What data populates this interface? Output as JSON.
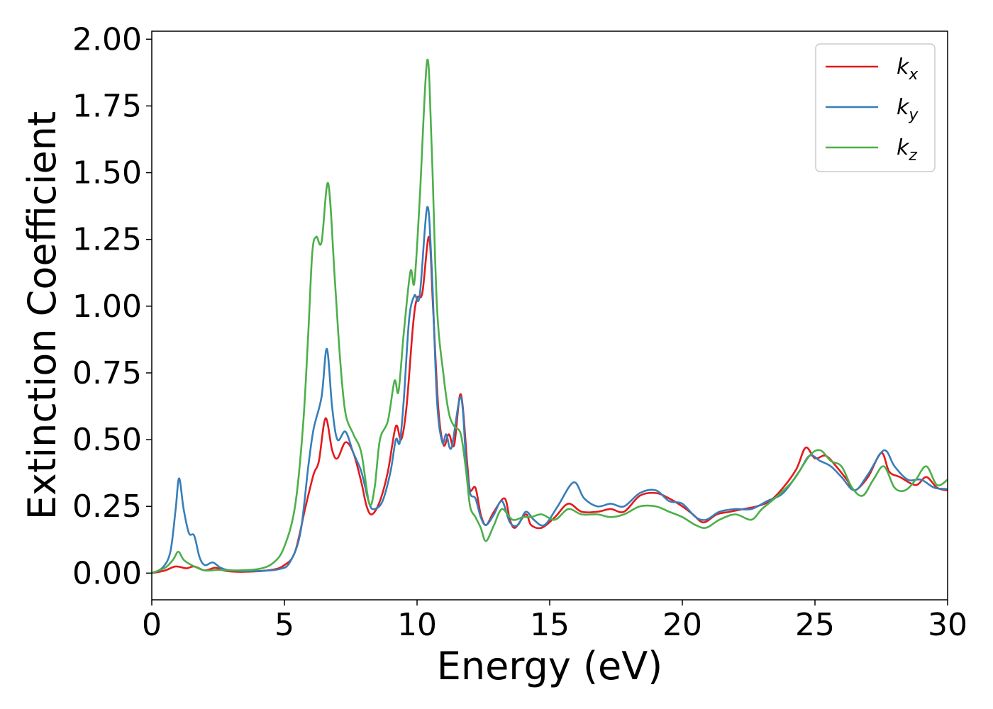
{
  "chart_data": {
    "type": "line",
    "title": "",
    "xlabel": "Energy (eV)",
    "ylabel": "Extinction Coefficient",
    "xlim": [
      0,
      30
    ],
    "ylim": [
      -0.1,
      2.03
    ],
    "xticks": [
      0,
      5,
      10,
      15,
      20,
      25,
      30
    ],
    "xtick_labels": [
      "0",
      "5",
      "10",
      "15",
      "20",
      "25",
      "30"
    ],
    "yticks": [
      0,
      0.25,
      0.5,
      0.75,
      1.0,
      1.25,
      1.5,
      1.75,
      2.0
    ],
    "ytick_labels": [
      "0.00",
      "0.25",
      "0.50",
      "0.75",
      "1.00",
      "1.25",
      "1.50",
      "1.75",
      "2.00"
    ],
    "grid": false,
    "legend_position": "top-right",
    "series": [
      {
        "name": "k",
        "subscript": "x",
        "color": "#e41a1c",
        "points": [
          [
            0,
            0
          ],
          [
            0.5,
            0.01
          ],
          [
            0.9,
            0.025
          ],
          [
            1.3,
            0.018
          ],
          [
            1.6,
            0.025
          ],
          [
            2.0,
            0.01
          ],
          [
            2.4,
            0.02
          ],
          [
            2.8,
            0.008
          ],
          [
            3.5,
            0.005
          ],
          [
            4.5,
            0.012
          ],
          [
            5.0,
            0.03
          ],
          [
            5.4,
            0.08
          ],
          [
            5.8,
            0.25
          ],
          [
            6.1,
            0.37
          ],
          [
            6.3,
            0.42
          ],
          [
            6.55,
            0.58
          ],
          [
            6.8,
            0.46
          ],
          [
            7.0,
            0.43
          ],
          [
            7.3,
            0.49
          ],
          [
            7.6,
            0.45
          ],
          [
            7.9,
            0.34
          ],
          [
            8.1,
            0.25
          ],
          [
            8.3,
            0.22
          ],
          [
            8.6,
            0.27
          ],
          [
            8.9,
            0.38
          ],
          [
            9.2,
            0.55
          ],
          [
            9.4,
            0.5
          ],
          [
            9.6,
            0.62
          ],
          [
            9.85,
            0.93
          ],
          [
            10.0,
            1.03
          ],
          [
            10.2,
            1.05
          ],
          [
            10.45,
            1.26
          ],
          [
            10.6,
            1.0
          ],
          [
            10.8,
            0.62
          ],
          [
            11.0,
            0.48
          ],
          [
            11.2,
            0.52
          ],
          [
            11.4,
            0.48
          ],
          [
            11.65,
            0.67
          ],
          [
            11.9,
            0.4
          ],
          [
            12.0,
            0.31
          ],
          [
            12.2,
            0.32
          ],
          [
            12.4,
            0.22
          ],
          [
            12.6,
            0.18
          ],
          [
            12.9,
            0.23
          ],
          [
            13.3,
            0.28
          ],
          [
            13.5,
            0.2
          ],
          [
            13.7,
            0.17
          ],
          [
            14.1,
            0.22
          ],
          [
            14.3,
            0.18
          ],
          [
            14.7,
            0.17
          ],
          [
            15.2,
            0.21
          ],
          [
            15.7,
            0.26
          ],
          [
            16.2,
            0.23
          ],
          [
            16.8,
            0.23
          ],
          [
            17.3,
            0.24
          ],
          [
            17.8,
            0.23
          ],
          [
            18.4,
            0.29
          ],
          [
            19.0,
            0.3
          ],
          [
            19.5,
            0.28
          ],
          [
            20.0,
            0.25
          ],
          [
            20.4,
            0.22
          ],
          [
            20.8,
            0.19
          ],
          [
            21.3,
            0.22
          ],
          [
            21.8,
            0.23
          ],
          [
            22.3,
            0.24
          ],
          [
            22.8,
            0.25
          ],
          [
            23.3,
            0.27
          ],
          [
            23.8,
            0.32
          ],
          [
            24.3,
            0.39
          ],
          [
            24.65,
            0.47
          ],
          [
            25.0,
            0.43
          ],
          [
            25.4,
            0.44
          ],
          [
            25.8,
            0.4
          ],
          [
            26.2,
            0.35
          ],
          [
            26.5,
            0.31
          ],
          [
            27.0,
            0.36
          ],
          [
            27.5,
            0.45
          ],
          [
            27.8,
            0.38
          ],
          [
            28.2,
            0.36
          ],
          [
            28.8,
            0.33
          ],
          [
            29.2,
            0.36
          ],
          [
            29.6,
            0.32
          ],
          [
            30.0,
            0.31
          ]
        ]
      },
      {
        "name": "k",
        "subscript": "y",
        "color": "#377eb8",
        "points": [
          [
            0,
            0
          ],
          [
            0.4,
            0.02
          ],
          [
            0.7,
            0.08
          ],
          [
            0.9,
            0.24
          ],
          [
            1.03,
            0.355
          ],
          [
            1.2,
            0.24
          ],
          [
            1.4,
            0.15
          ],
          [
            1.6,
            0.14
          ],
          [
            1.8,
            0.06
          ],
          [
            2.0,
            0.03
          ],
          [
            2.3,
            0.04
          ],
          [
            2.6,
            0.02
          ],
          [
            3.0,
            0.01
          ],
          [
            4.0,
            0.008
          ],
          [
            4.8,
            0.015
          ],
          [
            5.2,
            0.04
          ],
          [
            5.6,
            0.15
          ],
          [
            5.9,
            0.4
          ],
          [
            6.1,
            0.54
          ],
          [
            6.4,
            0.66
          ],
          [
            6.6,
            0.84
          ],
          [
            6.8,
            0.62
          ],
          [
            7.0,
            0.5
          ],
          [
            7.3,
            0.53
          ],
          [
            7.6,
            0.45
          ],
          [
            7.9,
            0.38
          ],
          [
            8.2,
            0.26
          ],
          [
            8.4,
            0.24
          ],
          [
            8.7,
            0.27
          ],
          [
            9.0,
            0.38
          ],
          [
            9.2,
            0.5
          ],
          [
            9.35,
            0.49
          ],
          [
            9.5,
            0.65
          ],
          [
            9.7,
            0.95
          ],
          [
            9.9,
            1.04
          ],
          [
            10.1,
            1.04
          ],
          [
            10.38,
            1.37
          ],
          [
            10.55,
            1.15
          ],
          [
            10.75,
            0.65
          ],
          [
            10.95,
            0.49
          ],
          [
            11.1,
            0.52
          ],
          [
            11.3,
            0.47
          ],
          [
            11.65,
            0.66
          ],
          [
            11.85,
            0.42
          ],
          [
            12.0,
            0.3
          ],
          [
            12.2,
            0.28
          ],
          [
            12.4,
            0.21
          ],
          [
            12.6,
            0.18
          ],
          [
            12.9,
            0.22
          ],
          [
            13.2,
            0.27
          ],
          [
            13.5,
            0.19
          ],
          [
            13.8,
            0.18
          ],
          [
            14.1,
            0.23
          ],
          [
            14.4,
            0.2
          ],
          [
            14.8,
            0.18
          ],
          [
            15.3,
            0.25
          ],
          [
            15.9,
            0.34
          ],
          [
            16.3,
            0.28
          ],
          [
            16.8,
            0.25
          ],
          [
            17.3,
            0.26
          ],
          [
            17.8,
            0.25
          ],
          [
            18.4,
            0.3
          ],
          [
            19.0,
            0.31
          ],
          [
            19.5,
            0.27
          ],
          [
            20.0,
            0.26
          ],
          [
            20.5,
            0.21
          ],
          [
            20.9,
            0.2
          ],
          [
            21.4,
            0.23
          ],
          [
            22.0,
            0.24
          ],
          [
            22.6,
            0.24
          ],
          [
            23.2,
            0.27
          ],
          [
            23.8,
            0.3
          ],
          [
            24.4,
            0.38
          ],
          [
            24.8,
            0.44
          ],
          [
            25.2,
            0.42
          ],
          [
            25.6,
            0.4
          ],
          [
            26.0,
            0.36
          ],
          [
            26.5,
            0.31
          ],
          [
            27.0,
            0.37
          ],
          [
            27.6,
            0.46
          ],
          [
            28.0,
            0.4
          ],
          [
            28.5,
            0.35
          ],
          [
            29.0,
            0.35
          ],
          [
            29.5,
            0.32
          ],
          [
            30.0,
            0.315
          ]
        ]
      },
      {
        "name": "k",
        "subscript": "z",
        "color": "#4daf4a",
        "points": [
          [
            0,
            0
          ],
          [
            0.5,
            0.02
          ],
          [
            0.8,
            0.05
          ],
          [
            1.0,
            0.08
          ],
          [
            1.2,
            0.05
          ],
          [
            1.5,
            0.03
          ],
          [
            2.0,
            0.01
          ],
          [
            2.5,
            0.012
          ],
          [
            3.0,
            0.01
          ],
          [
            4.0,
            0.015
          ],
          [
            4.6,
            0.04
          ],
          [
            5.0,
            0.1
          ],
          [
            5.4,
            0.25
          ],
          [
            5.7,
            0.55
          ],
          [
            5.9,
            0.9
          ],
          [
            6.05,
            1.2
          ],
          [
            6.2,
            1.26
          ],
          [
            6.4,
            1.24
          ],
          [
            6.65,
            1.46
          ],
          [
            6.9,
            1.1
          ],
          [
            7.1,
            0.8
          ],
          [
            7.3,
            0.6
          ],
          [
            7.6,
            0.52
          ],
          [
            7.9,
            0.45
          ],
          [
            8.2,
            0.26
          ],
          [
            8.4,
            0.32
          ],
          [
            8.6,
            0.5
          ],
          [
            8.9,
            0.57
          ],
          [
            9.15,
            0.72
          ],
          [
            9.3,
            0.68
          ],
          [
            9.5,
            0.9
          ],
          [
            9.75,
            1.13
          ],
          [
            9.9,
            1.09
          ],
          [
            10.1,
            1.4
          ],
          [
            10.38,
            1.92
          ],
          [
            10.55,
            1.6
          ],
          [
            10.75,
            1.0
          ],
          [
            11.0,
            0.74
          ],
          [
            11.2,
            0.6
          ],
          [
            11.4,
            0.55
          ],
          [
            11.65,
            0.52
          ],
          [
            11.85,
            0.38
          ],
          [
            12.0,
            0.25
          ],
          [
            12.2,
            0.21
          ],
          [
            12.4,
            0.17
          ],
          [
            12.6,
            0.12
          ],
          [
            12.9,
            0.18
          ],
          [
            13.2,
            0.24
          ],
          [
            13.6,
            0.2
          ],
          [
            14.0,
            0.21
          ],
          [
            14.3,
            0.21
          ],
          [
            14.7,
            0.22
          ],
          [
            15.2,
            0.2
          ],
          [
            15.7,
            0.24
          ],
          [
            16.2,
            0.22
          ],
          [
            16.8,
            0.22
          ],
          [
            17.3,
            0.21
          ],
          [
            17.8,
            0.22
          ],
          [
            18.4,
            0.25
          ],
          [
            19.0,
            0.25
          ],
          [
            19.5,
            0.23
          ],
          [
            20.0,
            0.21
          ],
          [
            20.5,
            0.18
          ],
          [
            20.9,
            0.17
          ],
          [
            21.4,
            0.2
          ],
          [
            22.0,
            0.22
          ],
          [
            22.6,
            0.2
          ],
          [
            23.0,
            0.24
          ],
          [
            23.6,
            0.29
          ],
          [
            24.2,
            0.35
          ],
          [
            24.8,
            0.44
          ],
          [
            25.2,
            0.46
          ],
          [
            25.6,
            0.42
          ],
          [
            26.0,
            0.4
          ],
          [
            26.4,
            0.32
          ],
          [
            26.8,
            0.29
          ],
          [
            27.2,
            0.35
          ],
          [
            27.6,
            0.4
          ],
          [
            28.0,
            0.32
          ],
          [
            28.4,
            0.31
          ],
          [
            28.8,
            0.35
          ],
          [
            29.2,
            0.4
          ],
          [
            29.6,
            0.33
          ],
          [
            30.0,
            0.35
          ]
        ]
      }
    ]
  }
}
